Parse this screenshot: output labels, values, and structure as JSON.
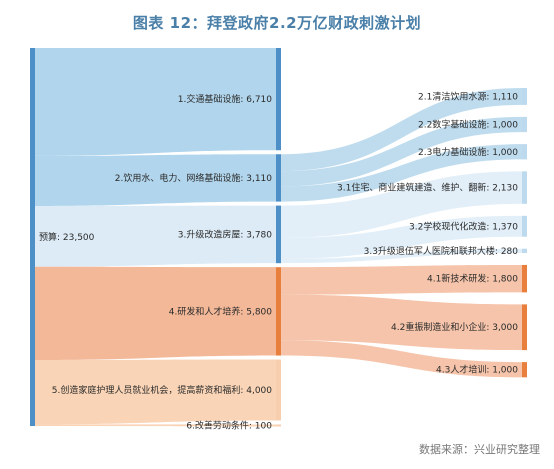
{
  "title": "图表 12：拜登政府2.2万亿财政刺激计划",
  "source": "数据来源：兴业研究整理",
  "colors": {
    "blue_bar": "#4d8fc7",
    "blue_link": "#a9d0ea",
    "pale_link": "#d8e9f5",
    "orange_bar": "#e97f3c",
    "orange_link": "#f2b08d",
    "peach_link": "#f8cfae"
  },
  "chart_data": {
    "type": "sankey",
    "total": {
      "label": "预算",
      "value": 23500
    },
    "categories": [
      {
        "id": "1",
        "label": "1.交通基础设施",
        "value": 6710,
        "group": "blue"
      },
      {
        "id": "2",
        "label": "2.饮用水、电力、网络基础设施",
        "value": 3110,
        "group": "blue"
      },
      {
        "id": "3",
        "label": "3.升级改造房屋",
        "value": 3780,
        "group": "pale"
      },
      {
        "id": "4",
        "label": "4.研发和人才培养",
        "value": 5800,
        "group": "orange"
      },
      {
        "id": "5",
        "label": "5.创造家庭护理人员就业机会，提高薪资和福利",
        "value": 4000,
        "group": "peach"
      },
      {
        "id": "6",
        "label": "6.改善劳动条件",
        "value": 100,
        "group": "peach"
      }
    ],
    "subitems": [
      {
        "parent": "2",
        "label": "2.1清洁饮用水源",
        "value": 1110
      },
      {
        "parent": "2",
        "label": "2.2数字基础设施",
        "value": 1000
      },
      {
        "parent": "2",
        "label": "2.3电力基础设施",
        "value": 1000
      },
      {
        "parent": "3",
        "label": "3.1住宅、商业建筑建造、维护、翻新",
        "value": 2130
      },
      {
        "parent": "3",
        "label": "3.2学校现代化改造",
        "value": 1370
      },
      {
        "parent": "3",
        "label": "3.3升级退伍军人医院和联邦大楼",
        "value": 280
      },
      {
        "parent": "4",
        "label": "4.1新技术研发",
        "value": 1800
      },
      {
        "parent": "4",
        "label": "4.2重振制造业和小企业",
        "value": 3000
      },
      {
        "parent": "4",
        "label": "4.3人才培训",
        "value": 1000
      }
    ]
  }
}
